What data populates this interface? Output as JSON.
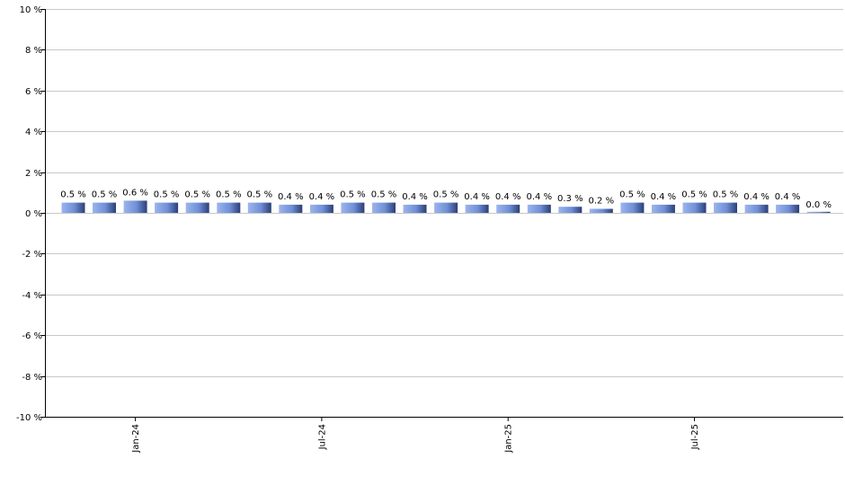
{
  "chart_data": {
    "type": "bar",
    "title": "",
    "xlabel": "",
    "ylabel": "",
    "ylim": [
      -10,
      10
    ],
    "yticks": [
      10,
      8,
      6,
      4,
      2,
      0,
      -2,
      -4,
      -6,
      -8,
      -10
    ],
    "ytick_labels": [
      "10 %",
      "8 %",
      "6 %",
      "4 %",
      "2 %",
      "0 %",
      "-2 %",
      "-4 %",
      "-6 %",
      "-8 %",
      "-10 %"
    ],
    "grid": true,
    "legend": "none",
    "bar_color": "#6f8fd6",
    "x_tick_labels": [
      {
        "label": "Jan-24",
        "index": 2
      },
      {
        "label": "Jul-24",
        "index": 8
      },
      {
        "label": "Jan-25",
        "index": 14
      },
      {
        "label": "Jul-25",
        "index": 20
      }
    ],
    "values": [
      0.5,
      0.5,
      0.6,
      0.5,
      0.5,
      0.5,
      0.5,
      0.4,
      0.4,
      0.5,
      0.5,
      0.4,
      0.5,
      0.4,
      0.4,
      0.4,
      0.3,
      0.2,
      0.5,
      0.4,
      0.5,
      0.5,
      0.4,
      0.4,
      0.0
    ],
    "data_labels": [
      "0.5 %",
      "0.5 %",
      "0.6 %",
      "0.5 %",
      "0.5 %",
      "0.5 %",
      "0.5 %",
      "0.4 %",
      "0.4 %",
      "0.5 %",
      "0.5 %",
      "0.4 %",
      "0.5 %",
      "0.4 %",
      "0.4 %",
      "0.4 %",
      "0.3 %",
      "0.2 %",
      "0.5 %",
      "0.4 %",
      "0.5 %",
      "0.5 %",
      "0.4 %",
      "0.4 %",
      "0.0 %"
    ]
  }
}
